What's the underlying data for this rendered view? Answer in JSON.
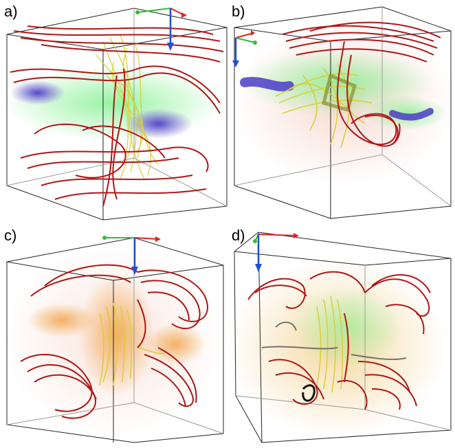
{
  "panels": [
    {
      "label": "a)"
    },
    {
      "label": "b)"
    },
    {
      "label": "c)"
    },
    {
      "label": "d)"
    }
  ],
  "colors": {
    "streamline_primary": "#b01515",
    "streamline_secondary": "#d8cf3a",
    "volume_blue": "#4b3cc8",
    "volume_green": "#7cf08a",
    "volume_orange": "#f0a040",
    "axis_x": "#e02020",
    "axis_y": "#30c030",
    "axis_z": "#1f4fd8"
  }
}
